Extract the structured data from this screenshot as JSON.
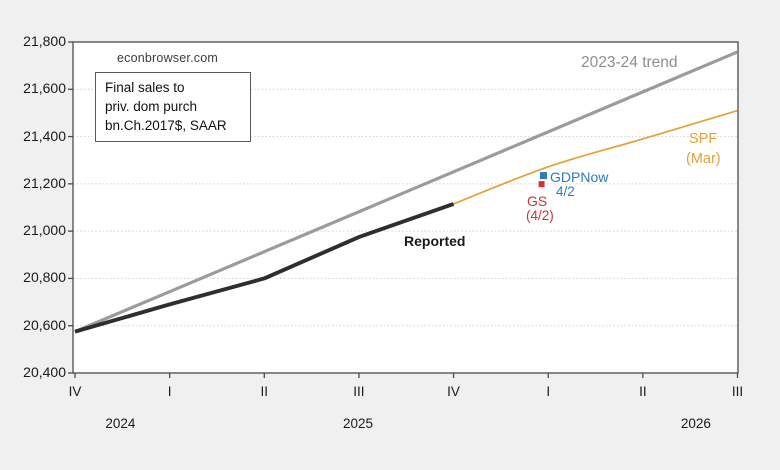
{
  "annotations": {
    "watermark": "econbrowser.com",
    "note_lines": [
      "Final sales to",
      "priv. dom purch",
      "bn.Ch.2017$, SAAR"
    ],
    "trend": "2023-24 trend",
    "spf_line1": "SPF",
    "spf_line2": "(Mar)",
    "gdpnow": "GDPNow",
    "gdpnow_date": "4/2",
    "gs": "GS",
    "gs_date": "(4/2)",
    "reported": "Reported"
  },
  "colors": {
    "background": "#f0f0f0",
    "plot_bg": "#ffffff",
    "frame": "#4a4a4a",
    "grid": "#d0d0d0",
    "axis_text": "#1a1a1a",
    "trend": "#8e8e8e",
    "reported": "#2e2e2e",
    "spf": "#e5a03a",
    "gdpnow": "#2b7bbe",
    "gs": "#d63030"
  },
  "chart_data": {
    "type": "line",
    "title": "Final sales to priv. dom purch bn.Ch.2017$, SAAR",
    "x_quarter_labels": [
      "IV",
      "I",
      "II",
      "III",
      "IV",
      "I",
      "II",
      "III"
    ],
    "x_year_labels": [
      {
        "label": "2024",
        "q": 0.48
      },
      {
        "label": "2025",
        "q": 2.99
      },
      {
        "label": "2026",
        "q": 6.56
      }
    ],
    "ylim": [
      20400,
      21800
    ],
    "ytick_step": 200,
    "ytick_labels": [
      "21,800",
      "21,600",
      "21,400",
      "21,200",
      "21,000",
      "20,800",
      "20,600",
      "20,400"
    ],
    "grid": "dotted",
    "series": [
      {
        "id": "trend-line",
        "name": "2023-24 trend",
        "color": "#9b9b9b",
        "width": 3.2,
        "start_q": 0,
        "smooth": false,
        "values": [
          20575,
          20744,
          20913,
          21082,
          21251,
          21420,
          21589,
          21758
        ]
      },
      {
        "id": "reported-line",
        "name": "Reported",
        "color": "#2e2e2e",
        "width": 3.9,
        "start_q": 0,
        "smooth": false,
        "values": [
          20575,
          20690,
          20800,
          20975,
          21115
        ]
      },
      {
        "id": "spf-line",
        "name": "SPF (Mar)",
        "color": "#e5a03a",
        "width": 1.7,
        "start_q": 4,
        "smooth": true,
        "values": [
          21115,
          21272,
          21390,
          21510
        ]
      }
    ],
    "markers": [
      {
        "id": "gs-marker",
        "name": "GS (4/2)",
        "color": "#d63030",
        "q": 4.93,
        "value": 21199,
        "size": 6
      },
      {
        "id": "gdpnow-marker",
        "name": "GDPNow 4/2",
        "color": "#2b7bbe",
        "q": 4.95,
        "value": 21235,
        "size": 7
      }
    ]
  }
}
